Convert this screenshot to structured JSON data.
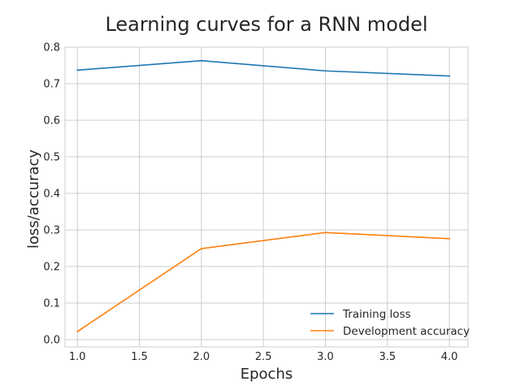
{
  "chart_data": {
    "type": "line",
    "title": "Learning curves for a RNN model",
    "xlabel": "Epochs",
    "ylabel": "loss/accuracy",
    "xlim": [
      0.9,
      4.15
    ],
    "ylim": [
      -0.02,
      0.8
    ],
    "xticks": [
      "1.0",
      "1.5",
      "2.0",
      "2.5",
      "3.0",
      "3.5",
      "4.0"
    ],
    "yticks": [
      "0.0",
      "0.1",
      "0.2",
      "0.3",
      "0.4",
      "0.5",
      "0.6",
      "0.7",
      "0.8"
    ],
    "grid": true,
    "legend_position": "lower-right",
    "x": [
      1,
      2,
      3,
      4
    ],
    "series": [
      {
        "name": "Training loss",
        "color": "#1f77b4",
        "values": [
          0.737,
          0.763,
          0.735,
          0.721
        ]
      },
      {
        "name": "Development accuracy",
        "color": "#ff7f0e",
        "values": [
          0.022,
          0.249,
          0.293,
          0.276
        ]
      }
    ]
  }
}
